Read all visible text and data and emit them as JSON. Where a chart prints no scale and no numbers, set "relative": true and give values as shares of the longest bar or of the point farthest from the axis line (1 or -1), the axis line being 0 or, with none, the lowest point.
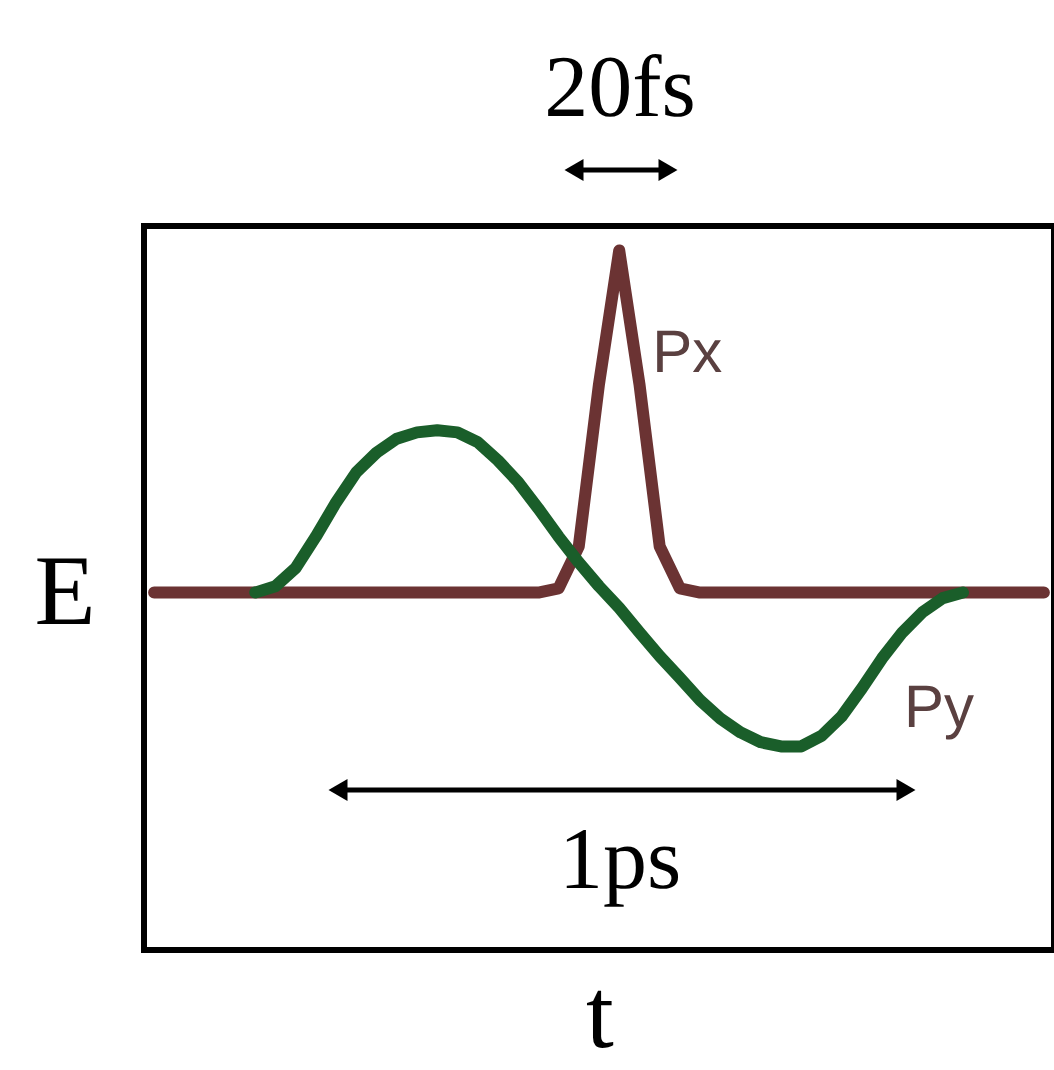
{
  "chart_data": {
    "type": "line",
    "relative": true,
    "xlabel": "t",
    "ylabel": "E",
    "legend": false,
    "categories": [
      null,
      null,
      null,
      null,
      null,
      null,
      null,
      null,
      null,
      null,
      null,
      null,
      null,
      null,
      null,
      null,
      null,
      null,
      null,
      null,
      null,
      null,
      null,
      null,
      null,
      null,
      null,
      null,
      null,
      null,
      null,
      null,
      null,
      null,
      null,
      null,
      null,
      null,
      null,
      null,
      null,
      null,
      null,
      null,
      null
    ],
    "series": [
      {
        "name": "Px",
        "color": "#6b3333",
        "values": [
          0.511,
          0.511,
          0.511,
          0.511,
          0.511,
          0.511,
          0.511,
          0.511,
          0.511,
          0.511,
          0.511,
          0.511,
          0.511,
          0.511,
          0.511,
          0.511,
          0.511,
          0.511,
          0.511,
          0.511,
          0.517,
          0.577,
          0.809,
          1,
          0.809,
          0.577,
          0.517,
          0.511,
          0.511,
          0.511,
          0.511,
          0.511,
          0.511,
          0.511,
          0.511,
          0.511,
          0.511,
          0.511,
          0.511,
          0.511,
          0.511,
          0.511,
          0.511,
          0.511,
          0.511
        ]
      },
      {
        "name": "Py",
        "color": "#1a5e2a",
        "values": [
          null,
          null,
          null,
          null,
          null,
          0.511,
          0.52,
          0.546,
          0.591,
          0.64,
          0.683,
          0.711,
          0.731,
          0.74,
          0.743,
          0.74,
          0.726,
          0.7,
          0.669,
          0.631,
          0.591,
          0.554,
          0.52,
          0.489,
          0.454,
          0.42,
          0.389,
          0.357,
          0.331,
          0.311,
          0.297,
          0.291,
          0.291,
          0.306,
          0.334,
          0.374,
          0.417,
          0.454,
          0.483,
          0.503,
          0.511,
          null,
          null,
          null,
          null
        ]
      }
    ],
    "annotations": [
      "20fs",
      "1ps"
    ]
  }
}
